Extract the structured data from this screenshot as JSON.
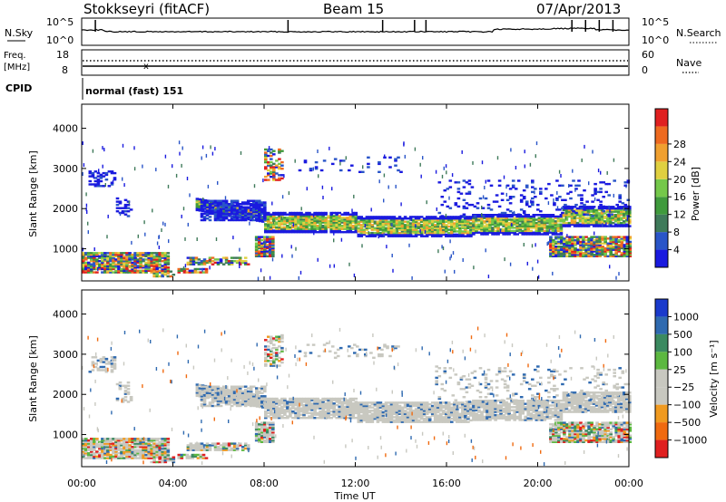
{
  "header": {
    "station": "Stokkseyri (fitACF)",
    "beam": "Beam 15",
    "date": "07/Apr/2013"
  },
  "noise_panel": {
    "left_label": "N.Sky",
    "right_label": "N.Search",
    "tick_top": "10^5",
    "tick_bottom": "10^0",
    "right_tick_top": "10^5",
    "right_tick_bottom": "10^0"
  },
  "freq_panel": {
    "left_label_1": "Freq.",
    "left_label_2": "[MHz]",
    "right_label": "Nave",
    "left_ticks": [
      "18",
      "8"
    ],
    "right_ticks": [
      "60",
      "0"
    ]
  },
  "cpid_panel": {
    "label": "CPID",
    "value": "normal (fast) 151"
  },
  "chart_data": [
    {
      "type": "heatmap",
      "name": "power",
      "ylabel": "Slant Range [km]",
      "y_ticks": [
        "1000",
        "2000",
        "3000",
        "4000"
      ],
      "ylim": [
        200,
        4600
      ],
      "colorbar": {
        "label": "Power [dB]",
        "ticks": [
          "4",
          "8",
          "12",
          "16",
          "20",
          "24",
          "28"
        ],
        "colors": [
          "#1a1adf",
          "#2a55c8",
          "#3f7a5a",
          "#3f9a3c",
          "#74c84a",
          "#e0d040",
          "#f0a030",
          "#ee6a20",
          "#e02020"
        ]
      }
    },
    {
      "type": "heatmap",
      "name": "velocity",
      "ylabel": "Slant Range [km]",
      "y_ticks": [
        "1000",
        "2000",
        "3000",
        "4000"
      ],
      "ylim": [
        200,
        4600
      ],
      "colorbar": {
        "label": "Velocity [m s⁻¹]",
        "ticks": [
          "1000",
          "500",
          "100",
          "25",
          "−25",
          "−100",
          "−500",
          "−1000"
        ],
        "colors": [
          "#1a3acc",
          "#2f6ab0",
          "#3b8a60",
          "#5cb840",
          "#c8c8c0",
          "#c8c8c0",
          "#f09a20",
          "#f06a10",
          "#e02020"
        ]
      }
    }
  ],
  "x_axis": {
    "label": "Time UT",
    "ticks": [
      "00:00",
      "04:00",
      "08:00",
      "12:00",
      "16:00",
      "20:00",
      "00:00"
    ]
  }
}
